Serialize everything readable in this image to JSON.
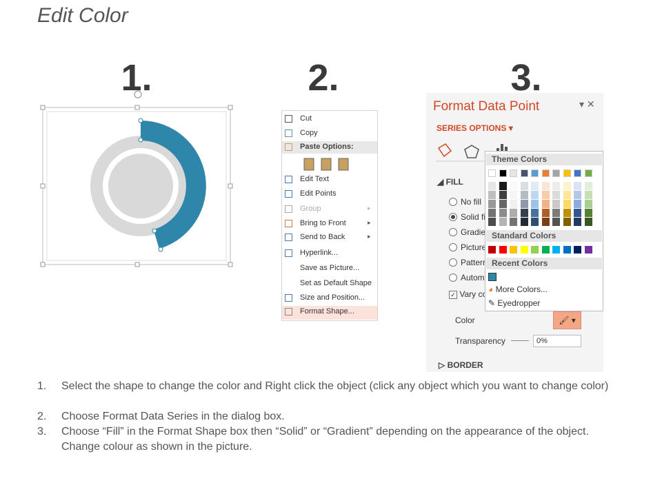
{
  "title": "Edit Color",
  "steps": [
    "1.",
    "2.",
    "3."
  ],
  "context_menu": {
    "items": [
      "Cut",
      "Copy",
      "Paste Options:",
      "Edit Text",
      "Edit Points",
      "Group",
      "Bring to Front",
      "Send to Back",
      "Hyperlink...",
      "Save as Picture...",
      "Set as Default Shape",
      "Size and Position...",
      "Format Shape..."
    ]
  },
  "format_panel": {
    "title": "Format Data Point",
    "section": "SERIES OPTIONS",
    "fill_header": "FILL",
    "fill_options": [
      "No fill",
      "Solid fi",
      "Gradie",
      "Picture",
      "Patterr",
      "Autom"
    ],
    "vary": "Vary co",
    "color_label": "Color",
    "transparency_label": "Transparency",
    "transparency_value": "0%",
    "border_header": "BORDER"
  },
  "color_popup": {
    "theme_header": "Theme Colors",
    "standard_header": "Standard Colors",
    "recent_header": "Recent Colors",
    "more_colors": "More Colors...",
    "eyedropper": "Eyedropper"
  },
  "instructions": {
    "numbers": [
      "1.",
      "2.",
      "3."
    ],
    "items": [
      "Select the shape to change the color and Right click the object (click any object which you want to change color)",
      "Choose Format Data Series in the dialog box.",
      "Choose “Fill” in the Format Shape box then “Solid” or “Gradient” depending on the appearance of the object. Change colour as shown in the picture."
    ]
  }
}
